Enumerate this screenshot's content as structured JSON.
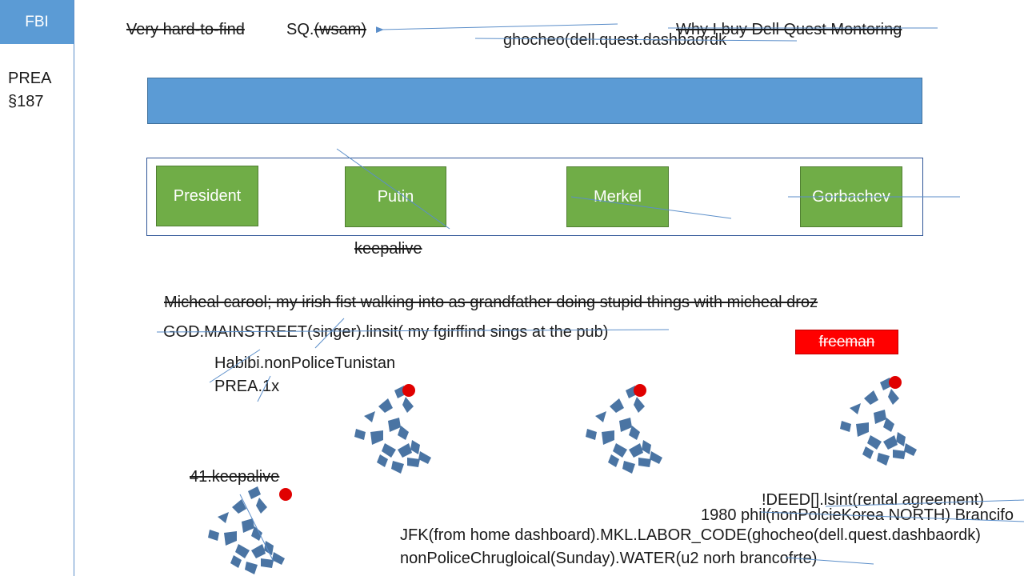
{
  "sidebar": {
    "fbi_label": "FBI",
    "code_line1": "PREA",
    "code_line2": "§187"
  },
  "header": {
    "hard_to_find": "Very hard-to-find",
    "sq": "SQ.(wsam)",
    "why_buy": "Why I buy Dell Quest Montoring",
    "ghocheo": "ghocheo(dell.quest.dashbaordk"
  },
  "boxes": {
    "president": "President",
    "putin": "Putin",
    "merkel": "Merkel",
    "gorbachev": "Gorbachev"
  },
  "notes": {
    "keepalive": "keepalive",
    "micheal": "Micheal carool; my irish fist walking into as grandfather doing stupid things with micheal droz",
    "god_mainstreet": "GOD.MAINSTREET(singer).linsit( my fgirffind sings at the pub)",
    "habibi": "Habibi.nonPoliceTunistan",
    "prea_1x": "PREA.1x",
    "freeman": "freeman",
    "keepalive_41": "41.keepalive",
    "deed": "!DEED[].lsint(rental agreement)",
    "phil": "1980 phil(nonPolcieKorea NORTH) Brancifo",
    "jfk": "JFK(from home dashboard).MKL.LABOR_CODE(ghocheo(dell.quest.dashbaordk)",
    "water": "nonPoliceChrugloical(Sunday).WATER(u2 norh brancofrte)"
  },
  "colors": {
    "accent_blue": "#5b9bd5",
    "box_green": "#70ad47",
    "alert_red": "#ff0000",
    "icon_blue": "#4a74a3"
  }
}
